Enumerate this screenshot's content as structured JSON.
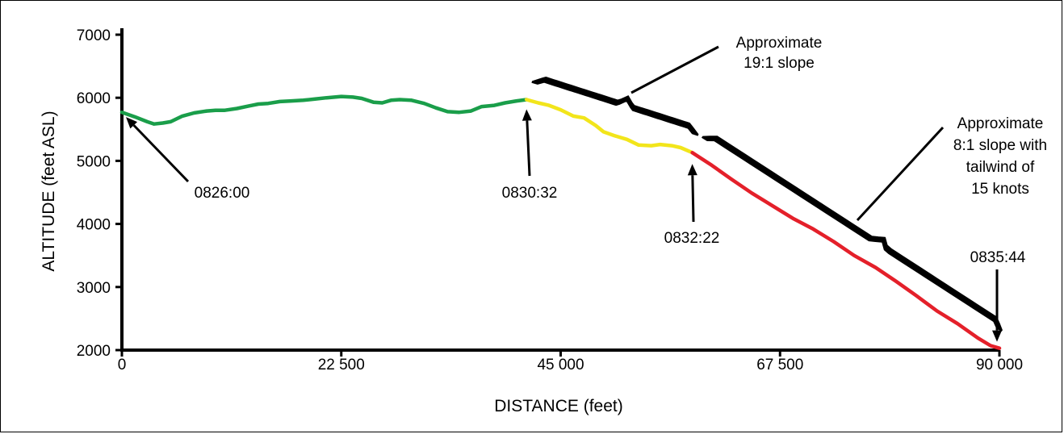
{
  "chart_data": {
    "type": "line",
    "title": "",
    "xlabel": "DISTANCE (feet)",
    "ylabel": "ALTITUDE (feet ASL)",
    "xlim": [
      0,
      90000
    ],
    "ylim": [
      2000,
      7000
    ],
    "x_ticks": [
      "0",
      "22 500",
      "45 000",
      "67 500",
      "90 000"
    ],
    "y_ticks": [
      "2000",
      "3000",
      "4000",
      "5000",
      "6000",
      "7000"
    ],
    "grid": false,
    "colors": {
      "green": "#1a9e4a",
      "yellow": "#f2e51b",
      "red": "#e4202a",
      "bracket": "#000000"
    },
    "series": [
      {
        "color": "#1a9e4a",
        "x": [
          0,
          1300,
          2600,
          3300,
          4200,
          5000,
          6200,
          7400,
          8700,
          9600,
          10500,
          11800,
          13000,
          14000,
          15000,
          16200,
          17400,
          18600,
          19800,
          21000,
          22500,
          23700,
          24600,
          25800,
          26700,
          27600,
          28500,
          29700,
          31000,
          32200,
          33400,
          34600,
          35800,
          36900,
          38200,
          39300,
          40500,
          41500
        ],
        "y": [
          5770,
          5700,
          5620,
          5585,
          5600,
          5620,
          5710,
          5760,
          5790,
          5800,
          5800,
          5830,
          5870,
          5900,
          5910,
          5940,
          5950,
          5960,
          5980,
          6000,
          6020,
          6010,
          5990,
          5930,
          5920,
          5960,
          5970,
          5960,
          5910,
          5840,
          5780,
          5770,
          5790,
          5860,
          5880,
          5920,
          5950,
          5970
        ]
      },
      {
        "color": "#f2e51b",
        "x": [
          41500,
          42700,
          43800,
          45000,
          46300,
          47400,
          48600,
          49400,
          50500,
          51800,
          53000,
          54300,
          55200,
          56400,
          57300,
          58500
        ],
        "y": [
          5970,
          5920,
          5880,
          5810,
          5710,
          5680,
          5560,
          5460,
          5400,
          5340,
          5250,
          5240,
          5260,
          5240,
          5210,
          5130
        ]
      },
      {
        "color": "#e4202a",
        "x": [
          58500,
          60500,
          62500,
          64600,
          66700,
          68800,
          70900,
          73000,
          75100,
          77300,
          79400,
          81500,
          83600,
          85700,
          87800,
          89100,
          90000
        ],
        "y": [
          5130,
          4930,
          4710,
          4490,
          4290,
          4090,
          3920,
          3720,
          3500,
          3310,
          3090,
          2860,
          2620,
          2420,
          2190,
          2070,
          2030
        ]
      }
    ],
    "annotations": [
      {
        "text": "0826:00",
        "x": 0,
        "y": 5770
      },
      {
        "text": "0830:32",
        "x": 41500,
        "y": 5970
      },
      {
        "text": "0832:22",
        "x": 58500,
        "y": 5130
      },
      {
        "text": "0835:44",
        "x": 90000,
        "y": 2030
      },
      {
        "lines": [
          "Approximate",
          "19:1 slope"
        ]
      },
      {
        "lines": [
          "Approximate",
          "8:1 slope with",
          "tailwind of",
          "15 knots"
        ]
      }
    ]
  }
}
